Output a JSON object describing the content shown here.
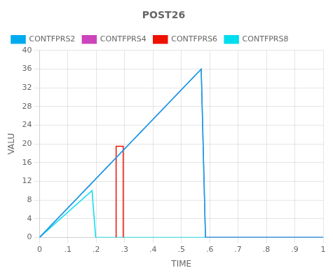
{
  "chart_data": {
    "type": "line",
    "title": "POST26",
    "x_label": "TIME",
    "y_label": "VALU",
    "xlim": [
      0,
      1.0
    ],
    "ylim": [
      0,
      40
    ],
    "xticks": [
      0,
      {
        "value": 0.1,
        "label": ".1"
      },
      {
        "value": 0.2,
        "label": ".2"
      },
      {
        "value": 0.3,
        "label": ".3"
      },
      {
        "value": 0.4,
        "label": ".4"
      },
      {
        "value": 0.5,
        "label": ".5"
      },
      {
        "value": 0.6,
        "label": ".6"
      },
      {
        "value": 0.7,
        "label": ".7"
      },
      {
        "value": 0.8,
        "label": ".8"
      },
      {
        "value": 0.9,
        "label": ".9"
      },
      1
    ],
    "yticks": [
      0,
      4,
      8,
      12,
      16,
      20,
      24,
      28,
      32,
      36,
      40
    ],
    "grid": true,
    "legend": "upper left",
    "series": [
      {
        "name": "CONTFPRS2",
        "color": "#00aaee",
        "x": [
          0.0,
          0.57,
          0.585,
          1.0
        ],
        "values": [
          0.0,
          36.0,
          0.0,
          0.0
        ]
      },
      {
        "name": "CONTFPRS4",
        "color": "#cc44bb",
        "x": [
          0.0,
          0.57,
          0.585,
          1.0
        ],
        "values": [
          0.0,
          36.0,
          0.0,
          0.0
        ]
      },
      {
        "name": "CONTFPRS6",
        "color": "#ee1100",
        "x": [
          0.27,
          0.27,
          0.295,
          0.295
        ],
        "values": [
          0.0,
          19.5,
          19.5,
          0.0
        ]
      },
      {
        "name": "CONTFPRS8",
        "color": "#00ddee",
        "x": [
          0.0,
          0.185,
          0.198,
          1.0
        ],
        "values": [
          0.0,
          10.0,
          0.0,
          0.0
        ]
      }
    ]
  }
}
